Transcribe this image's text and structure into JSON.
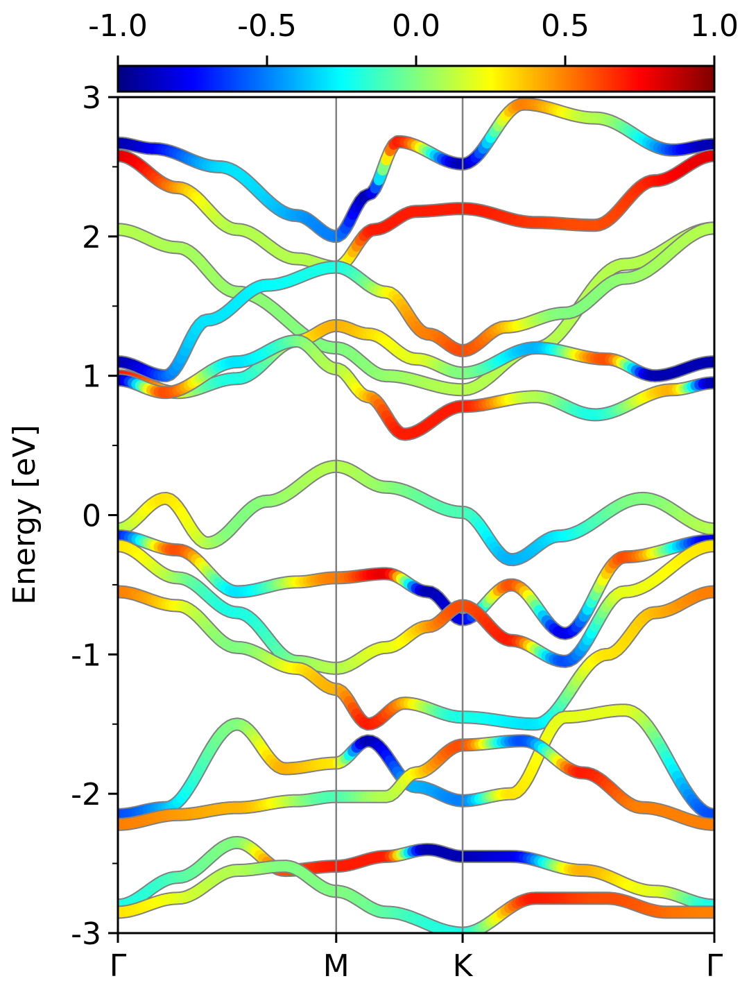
{
  "chart_data": {
    "type": "line",
    "ylabel": "Energy [eV]",
    "ylim": [
      -3,
      3
    ],
    "y_ticks": [
      "-3",
      "-2",
      "-1",
      "0",
      "1",
      "2",
      "3"
    ],
    "x_ticks": [
      {
        "label": "Γ",
        "x": 0
      },
      {
        "label": "M",
        "x": 0.366
      },
      {
        "label": "K",
        "x": 0.578
      },
      {
        "label": "Γ",
        "x": 1.0
      }
    ],
    "colorbar": {
      "colormap": "jet",
      "range": [
        -1.0,
        1.0
      ],
      "ticks": [
        "-1.0",
        "-0.5",
        "0.0",
        "0.5",
        "1.0"
      ]
    },
    "grid": false,
    "series": [
      {
        "values": [
          [
            0,
            2.67
          ],
          [
            0.06,
            2.63
          ],
          [
            0.17,
            2.5
          ],
          [
            0.3,
            2.15
          ],
          [
            0.366,
            2.0
          ],
          [
            0.42,
            2.3
          ],
          [
            0.47,
            2.68
          ],
          [
            0.578,
            2.52
          ],
          [
            0.68,
            2.95
          ],
          [
            0.8,
            2.85
          ],
          [
            0.93,
            2.62
          ],
          [
            1.0,
            2.66
          ]
        ],
        "spin": [
          [
            0,
            -0.9
          ],
          [
            0.2,
            -0.3
          ],
          [
            0.366,
            -0.5
          ],
          [
            0.42,
            -0.9
          ],
          [
            0.47,
            0.7
          ],
          [
            0.578,
            -0.9
          ],
          [
            0.68,
            0.5
          ],
          [
            0.8,
            0.1
          ],
          [
            1.0,
            -0.9
          ]
        ]
      },
      {
        "values": [
          [
            0,
            2.58
          ],
          [
            0.1,
            2.35
          ],
          [
            0.2,
            2.05
          ],
          [
            0.3,
            1.84
          ],
          [
            0.366,
            1.78
          ],
          [
            0.43,
            2.05
          ],
          [
            0.5,
            2.18
          ],
          [
            0.578,
            2.2
          ],
          [
            0.7,
            2.1
          ],
          [
            0.8,
            2.08
          ],
          [
            0.9,
            2.4
          ],
          [
            1.0,
            2.58
          ]
        ],
        "spin": [
          [
            0,
            0.8
          ],
          [
            0.2,
            0.1
          ],
          [
            0.366,
            0.1
          ],
          [
            0.43,
            0.7
          ],
          [
            0.578,
            0.7
          ],
          [
            0.8,
            0.6
          ],
          [
            1.0,
            0.8
          ]
        ]
      },
      {
        "values": [
          [
            0,
            2.05
          ],
          [
            0.1,
            1.92
          ],
          [
            0.2,
            1.6
          ],
          [
            0.366,
            1.2
          ],
          [
            0.45,
            1.0
          ],
          [
            0.578,
            0.9
          ],
          [
            0.7,
            1.2
          ],
          [
            0.85,
            1.8
          ],
          [
            1.0,
            2.06
          ]
        ],
        "spin": [
          [
            0,
            0.1
          ],
          [
            0.366,
            0.0
          ],
          [
            0.578,
            0.1
          ],
          [
            1.0,
            0.1
          ]
        ]
      },
      {
        "values": [
          [
            0,
            1.1
          ],
          [
            0.08,
            1.0
          ],
          [
            0.15,
            1.4
          ],
          [
            0.25,
            1.65
          ],
          [
            0.366,
            1.78
          ],
          [
            0.45,
            1.6
          ],
          [
            0.52,
            1.3
          ],
          [
            0.578,
            1.18
          ],
          [
            0.65,
            1.35
          ],
          [
            0.75,
            1.45
          ],
          [
            0.85,
            1.7
          ],
          [
            1.0,
            2.06
          ]
        ],
        "spin": [
          [
            0,
            -0.9
          ],
          [
            0.15,
            -0.3
          ],
          [
            0.366,
            -0.2
          ],
          [
            0.52,
            0.5
          ],
          [
            0.578,
            0.6
          ],
          [
            0.75,
            0.0
          ],
          [
            1.0,
            0.1
          ]
        ]
      },
      {
        "values": [
          [
            0,
            1.0
          ],
          [
            0.1,
            0.88
          ],
          [
            0.2,
            0.98
          ],
          [
            0.3,
            1.25
          ],
          [
            0.366,
            1.36
          ],
          [
            0.42,
            1.3
          ],
          [
            0.5,
            1.12
          ],
          [
            0.578,
            1.02
          ],
          [
            0.7,
            1.2
          ],
          [
            0.82,
            1.12
          ],
          [
            0.9,
            1.0
          ],
          [
            1.0,
            1.1
          ]
        ],
        "spin": [
          [
            0,
            0.7
          ],
          [
            0.2,
            -0.2
          ],
          [
            0.366,
            0.4
          ],
          [
            0.5,
            0.2
          ],
          [
            0.578,
            0.0
          ],
          [
            0.7,
            -0.4
          ],
          [
            0.82,
            0.6
          ],
          [
            0.9,
            -0.9
          ],
          [
            1.0,
            -0.9
          ]
        ]
      },
      {
        "values": [
          [
            0,
            0.97
          ],
          [
            0.08,
            0.88
          ],
          [
            0.2,
            1.1
          ],
          [
            0.3,
            1.25
          ],
          [
            0.366,
            1.05
          ],
          [
            0.42,
            0.85
          ],
          [
            0.48,
            0.58
          ],
          [
            0.578,
            0.78
          ],
          [
            0.7,
            0.85
          ],
          [
            0.8,
            0.72
          ],
          [
            0.93,
            0.9
          ],
          [
            1.0,
            0.95
          ]
        ],
        "spin": [
          [
            0,
            -0.9
          ],
          [
            0.08,
            0.6
          ],
          [
            0.2,
            -0.3
          ],
          [
            0.366,
            0.1
          ],
          [
            0.48,
            0.7
          ],
          [
            0.578,
            0.7
          ],
          [
            0.7,
            0.1
          ],
          [
            0.8,
            -0.2
          ],
          [
            0.93,
            0.4
          ],
          [
            1.0,
            -0.9
          ]
        ]
      },
      {
        "values": [
          [
            0,
            -0.1
          ],
          [
            0.08,
            0.12
          ],
          [
            0.15,
            -0.2
          ],
          [
            0.25,
            0.1
          ],
          [
            0.366,
            0.35
          ],
          [
            0.45,
            0.2
          ],
          [
            0.578,
            0.02
          ],
          [
            0.66,
            -0.32
          ],
          [
            0.74,
            -0.15
          ],
          [
            0.88,
            0.12
          ],
          [
            1.0,
            -0.1
          ]
        ],
        "spin": [
          [
            0,
            0.1
          ],
          [
            0.08,
            0.3
          ],
          [
            0.2,
            0.0
          ],
          [
            0.366,
            0.1
          ],
          [
            0.578,
            -0.1
          ],
          [
            0.66,
            -0.4
          ],
          [
            0.88,
            0.0
          ],
          [
            1.0,
            0.1
          ]
        ]
      },
      {
        "values": [
          [
            0,
            -0.15
          ],
          [
            0.1,
            -0.25
          ],
          [
            0.2,
            -0.55
          ],
          [
            0.3,
            -0.48
          ],
          [
            0.366,
            -0.45
          ],
          [
            0.45,
            -0.42
          ],
          [
            0.52,
            -0.55
          ],
          [
            0.578,
            -0.75
          ],
          [
            0.66,
            -0.5
          ],
          [
            0.75,
            -0.85
          ],
          [
            0.85,
            -0.3
          ],
          [
            1.0,
            -0.18
          ]
        ],
        "spin": [
          [
            0,
            -0.7
          ],
          [
            0.1,
            0.6
          ],
          [
            0.2,
            -0.3
          ],
          [
            0.366,
            0.5
          ],
          [
            0.45,
            0.8
          ],
          [
            0.52,
            -0.9
          ],
          [
            0.578,
            -0.8
          ],
          [
            0.66,
            0.6
          ],
          [
            0.75,
            -0.8
          ],
          [
            0.85,
            0.6
          ],
          [
            1.0,
            -0.8
          ]
        ]
      },
      {
        "values": [
          [
            0,
            -0.22
          ],
          [
            0.1,
            -0.45
          ],
          [
            0.2,
            -0.7
          ],
          [
            0.3,
            -1.05
          ],
          [
            0.366,
            -1.1
          ],
          [
            0.45,
            -0.95
          ],
          [
            0.52,
            -0.8
          ],
          [
            0.578,
            -0.65
          ],
          [
            0.66,
            -0.9
          ],
          [
            0.75,
            -1.05
          ],
          [
            0.85,
            -0.55
          ],
          [
            1.0,
            -0.22
          ]
        ],
        "spin": [
          [
            0,
            0.3
          ],
          [
            0.2,
            -0.2
          ],
          [
            0.366,
            0.1
          ],
          [
            0.45,
            0.2
          ],
          [
            0.578,
            0.6
          ],
          [
            0.66,
            0.7
          ],
          [
            0.75,
            -0.6
          ],
          [
            0.85,
            0.2
          ],
          [
            1.0,
            0.3
          ]
        ]
      },
      {
        "values": [
          [
            0,
            -0.55
          ],
          [
            0.1,
            -0.65
          ],
          [
            0.2,
            -0.95
          ],
          [
            0.3,
            -1.1
          ],
          [
            0.366,
            -1.25
          ],
          [
            0.42,
            -1.5
          ],
          [
            0.48,
            -1.35
          ],
          [
            0.578,
            -1.45
          ],
          [
            0.7,
            -1.5
          ],
          [
            0.82,
            -1.0
          ],
          [
            0.9,
            -0.7
          ],
          [
            1.0,
            -0.55
          ]
        ],
        "spin": [
          [
            0,
            0.5
          ],
          [
            0.2,
            0.0
          ],
          [
            0.366,
            0.4
          ],
          [
            0.42,
            0.7
          ],
          [
            0.578,
            -0.2
          ],
          [
            0.7,
            -0.3
          ],
          [
            0.82,
            0.3
          ],
          [
            1.0,
            0.5
          ]
        ]
      },
      {
        "values": [
          [
            0,
            -2.15
          ],
          [
            0.08,
            -2.1
          ],
          [
            0.2,
            -1.5
          ],
          [
            0.28,
            -1.82
          ],
          [
            0.366,
            -1.78
          ],
          [
            0.42,
            -1.62
          ],
          [
            0.5,
            -1.95
          ],
          [
            0.578,
            -2.05
          ],
          [
            0.66,
            -2.0
          ],
          [
            0.75,
            -1.45
          ],
          [
            0.85,
            -1.4
          ],
          [
            1.0,
            -2.15
          ]
        ],
        "spin": [
          [
            0,
            -0.6
          ],
          [
            0.2,
            0.0
          ],
          [
            0.28,
            0.4
          ],
          [
            0.366,
            0.3
          ],
          [
            0.42,
            -0.9
          ],
          [
            0.5,
            -0.4
          ],
          [
            0.578,
            -0.5
          ],
          [
            0.66,
            0.3
          ],
          [
            0.75,
            0.2
          ],
          [
            0.85,
            0.2
          ],
          [
            1.0,
            -0.6
          ]
        ]
      },
      {
        "values": [
          [
            0,
            -2.22
          ],
          [
            0.1,
            -2.15
          ],
          [
            0.2,
            -2.1
          ],
          [
            0.3,
            -2.05
          ],
          [
            0.366,
            -2.02
          ],
          [
            0.45,
            -2.02
          ],
          [
            0.5,
            -1.85
          ],
          [
            0.578,
            -1.65
          ],
          [
            0.68,
            -1.62
          ],
          [
            0.78,
            -1.85
          ],
          [
            0.88,
            -2.1
          ],
          [
            1.0,
            -2.22
          ]
        ],
        "spin": [
          [
            0,
            0.5
          ],
          [
            0.2,
            0.4
          ],
          [
            0.366,
            -0.1
          ],
          [
            0.45,
            0.1
          ],
          [
            0.578,
            0.6
          ],
          [
            0.68,
            -0.6
          ],
          [
            0.78,
            0.7
          ],
          [
            0.88,
            0.5
          ],
          [
            1.0,
            0.5
          ]
        ]
      },
      {
        "values": [
          [
            0,
            -2.8
          ],
          [
            0.1,
            -2.6
          ],
          [
            0.2,
            -2.35
          ],
          [
            0.28,
            -2.55
          ],
          [
            0.366,
            -2.52
          ],
          [
            0.45,
            -2.45
          ],
          [
            0.52,
            -2.4
          ],
          [
            0.578,
            -2.45
          ],
          [
            0.66,
            -2.45
          ],
          [
            0.78,
            -2.55
          ],
          [
            0.9,
            -2.7
          ],
          [
            1.0,
            -2.8
          ]
        ],
        "spin": [
          [
            0,
            -0.2
          ],
          [
            0.2,
            0.0
          ],
          [
            0.28,
            0.6
          ],
          [
            0.366,
            0.7
          ],
          [
            0.45,
            0.7
          ],
          [
            0.52,
            -0.9
          ],
          [
            0.578,
            -0.9
          ],
          [
            0.66,
            -0.8
          ],
          [
            0.78,
            0.4
          ],
          [
            0.9,
            0.2
          ],
          [
            1.0,
            -0.2
          ]
        ]
      },
      {
        "values": [
          [
            0,
            -2.85
          ],
          [
            0.1,
            -2.75
          ],
          [
            0.2,
            -2.55
          ],
          [
            0.28,
            -2.52
          ],
          [
            0.366,
            -2.7
          ],
          [
            0.45,
            -2.85
          ],
          [
            0.578,
            -3.0
          ],
          [
            0.7,
            -2.75
          ],
          [
            0.82,
            -2.75
          ],
          [
            0.92,
            -2.85
          ],
          [
            1.0,
            -2.85
          ]
        ],
        "spin": [
          [
            0,
            0.3
          ],
          [
            0.2,
            0.1
          ],
          [
            0.28,
            0.0
          ],
          [
            0.366,
            0.0
          ],
          [
            0.578,
            -0.2
          ],
          [
            0.7,
            0.7
          ],
          [
            0.82,
            0.6
          ],
          [
            1.0,
            0.5
          ]
        ]
      }
    ]
  }
}
